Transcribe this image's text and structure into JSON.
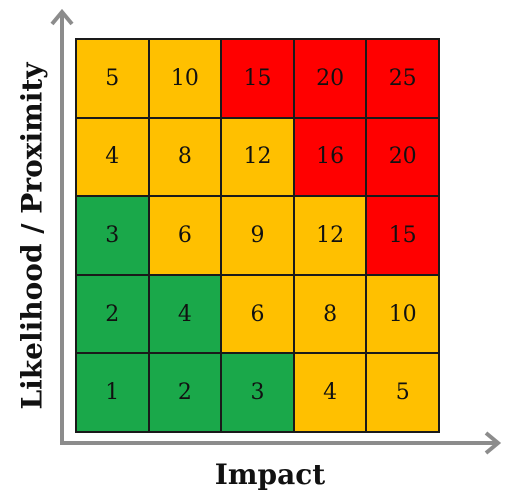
{
  "title": "",
  "xlabel": "Impact",
  "ylabel": "Likelihood / Proximity",
  "colors": {
    "green": "#1aa84a",
    "amber": "#ffc000",
    "red": "#ff0000",
    "axis": "#8c8c8c"
  },
  "matrix": {
    "rows": [
      [
        {
          "value": "5",
          "level": "amber"
        },
        {
          "value": "10",
          "level": "amber"
        },
        {
          "value": "15",
          "level": "red"
        },
        {
          "value": "20",
          "level": "red"
        },
        {
          "value": "25",
          "level": "red"
        }
      ],
      [
        {
          "value": "4",
          "level": "amber"
        },
        {
          "value": "8",
          "level": "amber"
        },
        {
          "value": "12",
          "level": "amber"
        },
        {
          "value": "16",
          "level": "red"
        },
        {
          "value": "20",
          "level": "red"
        }
      ],
      [
        {
          "value": "3",
          "level": "green"
        },
        {
          "value": "6",
          "level": "amber"
        },
        {
          "value": "9",
          "level": "amber"
        },
        {
          "value": "12",
          "level": "amber"
        },
        {
          "value": "15",
          "level": "red"
        }
      ],
      [
        {
          "value": "2",
          "level": "green"
        },
        {
          "value": "4",
          "level": "green"
        },
        {
          "value": "6",
          "level": "amber"
        },
        {
          "value": "8",
          "level": "amber"
        },
        {
          "value": "10",
          "level": "amber"
        }
      ],
      [
        {
          "value": "1",
          "level": "green"
        },
        {
          "value": "2",
          "level": "green"
        },
        {
          "value": "3",
          "level": "green"
        },
        {
          "value": "4",
          "level": "amber"
        },
        {
          "value": "5",
          "level": "amber"
        }
      ]
    ]
  }
}
